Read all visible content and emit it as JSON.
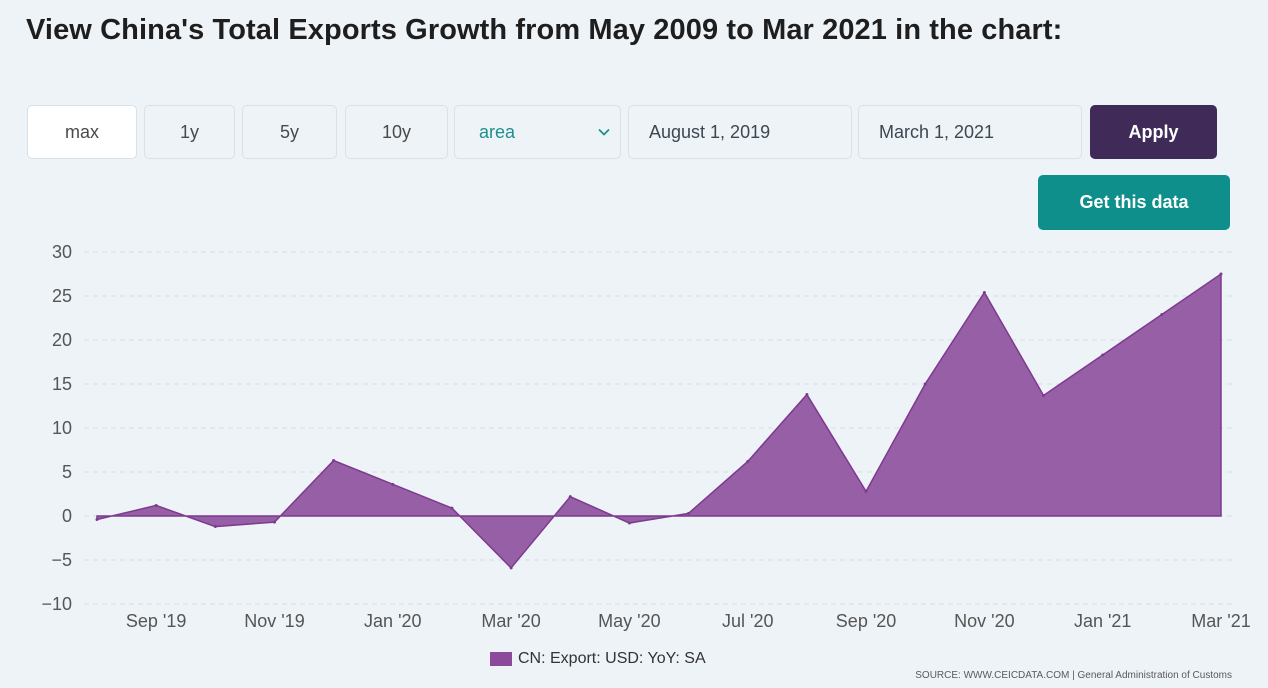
{
  "page": {
    "title": "View China's Total Exports Growth from May 2009 to Mar 2021 in the chart:"
  },
  "controls": {
    "range_buttons": [
      "max",
      "1y",
      "5y",
      "10y"
    ],
    "chart_type_selected": "area",
    "start_date": "August 1, 2019",
    "end_date": "March 1, 2021",
    "apply_label": "Apply",
    "get_data_label": "Get this data",
    "icons": {
      "dropdown": "chevron-down-icon"
    }
  },
  "colors": {
    "area_fill": "#8b4a9a",
    "apply_button": "#3f2a58",
    "get_data_button": "#0e8f8b",
    "accent_text": "#1f8f8d"
  },
  "chart_data": {
    "type": "area",
    "x": [
      "Aug 2019",
      "Sep 2019",
      "Oct 2019",
      "Nov 2019",
      "Dec 2019",
      "Jan 2020",
      "Feb 2020",
      "Mar 2020",
      "Apr 2020",
      "May 2020",
      "Jun 2020",
      "Jul 2020",
      "Aug 2020",
      "Sep 2020",
      "Oct 2020",
      "Nov 2020",
      "Dec 2020",
      "Jan 2021",
      "Feb 2021",
      "Mar 2021"
    ],
    "x_tick_labels": [
      "Sep '19",
      "Nov '19",
      "Jan '20",
      "Mar '20",
      "May '20",
      "Jul '20",
      "Sep '20",
      "Nov '20",
      "Jan '21",
      "Mar '21"
    ],
    "series": [
      {
        "name": "CN: Export: USD: YoY: SA",
        "values": [
          -0.4,
          1.2,
          -1.2,
          -0.7,
          6.3,
          3.6,
          0.9,
          -5.9,
          2.2,
          -0.8,
          0.3,
          6.2,
          13.8,
          2.8,
          15.0,
          25.4,
          13.7,
          18.3,
          22.9,
          27.5
        ]
      }
    ],
    "ylim": [
      -10,
      30
    ],
    "y_ticks": [
      30,
      25,
      20,
      15,
      10,
      5,
      0,
      -5,
      -10
    ],
    "y_tick_labels": [
      "30",
      "25",
      "20",
      "15",
      "10",
      "5",
      "0",
      "−5",
      "−10"
    ],
    "grid": true,
    "legend_position": "bottom-center",
    "source": "SOURCE: WWW.CEICDATA.COM | General Administration of Customs"
  }
}
